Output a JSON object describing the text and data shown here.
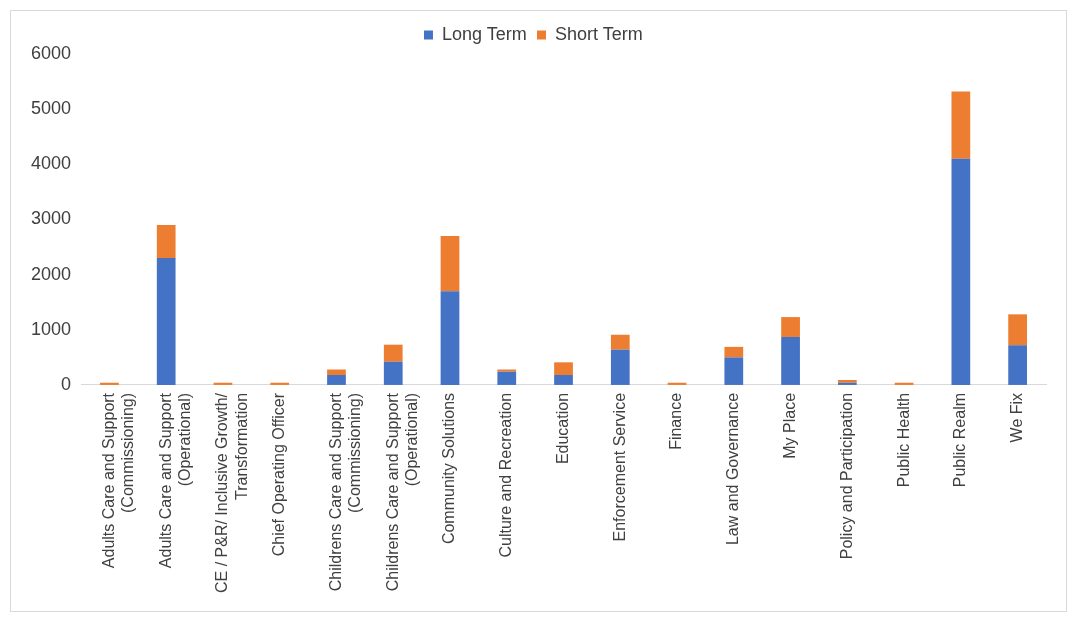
{
  "chart_data": {
    "type": "bar",
    "stacked": true,
    "legend": "top",
    "grid": false,
    "categories": [
      "Adults Care and Support (Commissioning)",
      "Adults Care and Support (Operational)",
      "CE / P&R/ Inclusive Growth/ Transformation",
      "Chief Operating Officer",
      "Childrens Care and Support (Commissioning)",
      "Childrens Care and Support (Operational)",
      "Community Solutions",
      "Culture and Recreation",
      "Education",
      "Enforcement Service",
      "Finance",
      "Law and Governance",
      "My Place",
      "Policy and Participation",
      "Public Health",
      "Public Realm",
      "We Fix"
    ],
    "series": [
      {
        "name": "Long Term",
        "color": "#4472c4",
        "values": [
          0,
          2300,
          0,
          0,
          180,
          420,
          1700,
          240,
          180,
          640,
          0,
          500,
          870,
          40,
          0,
          4100,
          720
        ]
      },
      {
        "name": "Short Term",
        "color": "#ed7d31",
        "values": [
          40,
          600,
          40,
          40,
          100,
          310,
          1000,
          40,
          230,
          270,
          40,
          190,
          360,
          50,
          40,
          1220,
          560
        ]
      }
    ],
    "ylim": [
      0,
      6000
    ],
    "yticks": [
      0,
      1000,
      2000,
      3000,
      4000,
      5000,
      6000
    ]
  }
}
